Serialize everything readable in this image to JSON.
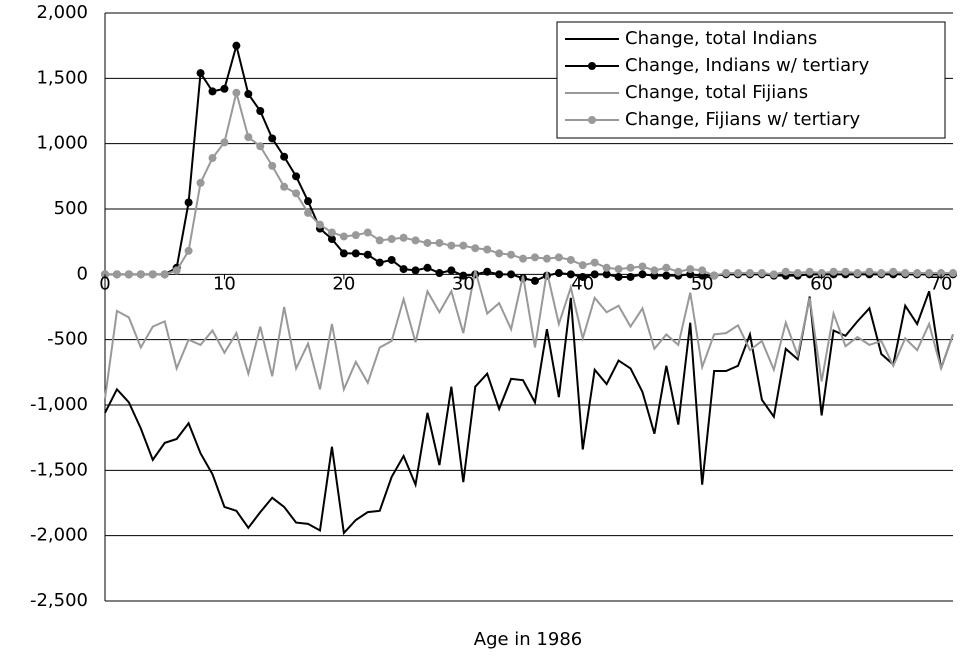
{
  "chart_data": {
    "type": "line",
    "x_label": "Age in 1986",
    "x": [
      0,
      1,
      2,
      3,
      4,
      5,
      6,
      7,
      8,
      9,
      10,
      11,
      12,
      13,
      14,
      15,
      16,
      17,
      18,
      19,
      20,
      21,
      22,
      23,
      24,
      25,
      26,
      27,
      28,
      29,
      30,
      31,
      32,
      33,
      34,
      35,
      36,
      37,
      38,
      39,
      40,
      41,
      42,
      43,
      44,
      45,
      46,
      47,
      48,
      49,
      50,
      51,
      52,
      53,
      54,
      55,
      56,
      57,
      58,
      59,
      60,
      61,
      62,
      63,
      64,
      65,
      66,
      67,
      68,
      69,
      70,
      71
    ],
    "xlim": [
      0,
      71
    ],
    "xticks": [
      0,
      10,
      20,
      30,
      40,
      50,
      60,
      70
    ],
    "ylim": [
      -2500,
      2000
    ],
    "yticks": [
      {
        "value": -2500,
        "label": "-2,500"
      },
      {
        "value": -2000,
        "label": "-2,000"
      },
      {
        "value": -1500,
        "label": "-1,500"
      },
      {
        "value": -1000,
        "label": "-1,000"
      },
      -500,
      0,
      500,
      {
        "value": 1000,
        "label": "1,000"
      },
      {
        "value": 1500,
        "label": "1,500"
      },
      {
        "value": 2000,
        "label": "2,000"
      }
    ],
    "grid": true,
    "legend": "top-right",
    "series": [
      {
        "name": "Change, total Indians",
        "color": "#000000",
        "marker": false,
        "values": [
          -1060,
          -880,
          -980,
          -1180,
          -1420,
          -1290,
          -1260,
          -1140,
          -1370,
          -1530,
          -1780,
          -1810,
          -1940,
          -1820,
          -1710,
          -1780,
          -1900,
          -1910,
          -1960,
          -1320,
          -1980,
          -1880,
          -1820,
          -1810,
          -1550,
          -1390,
          -1610,
          -1060,
          -1460,
          -860,
          -1590,
          -860,
          -760,
          -1030,
          -800,
          -810,
          -980,
          -420,
          -940,
          -180,
          -1340,
          -730,
          -840,
          -660,
          -720,
          -900,
          -1220,
          -700,
          -1150,
          -370,
          -1610,
          -740,
          -740,
          -700,
          -460,
          -960,
          -1090,
          -570,
          -650,
          -170,
          -1080,
          -430,
          -470,
          -360,
          -260,
          -610,
          -690,
          -240,
          -380,
          -130,
          -720,
          -460
        ]
      },
      {
        "name": "Change, Indians w/ tertiary",
        "color": "#000000",
        "marker": true,
        "values": [
          0,
          0,
          0,
          0,
          0,
          0,
          50,
          550,
          1540,
          1400,
          1420,
          1750,
          1380,
          1250,
          1040,
          900,
          750,
          560,
          350,
          270,
          160,
          160,
          150,
          90,
          110,
          40,
          30,
          50,
          10,
          30,
          -10,
          0,
          20,
          0,
          0,
          -30,
          -50,
          -10,
          10,
          0,
          -20,
          0,
          0,
          -20,
          -20,
          0,
          -10,
          -10,
          -10,
          0,
          -10,
          -10,
          0,
          0,
          0,
          0,
          -10,
          -10,
          -10,
          0,
          0,
          0,
          0,
          0,
          0,
          0,
          0,
          0,
          0,
          0,
          0,
          0
        ]
      },
      {
        "name": "Change, total Fijians",
        "color": "#999999",
        "marker": false,
        "values": [
          -950,
          -280,
          -330,
          -560,
          -400,
          -360,
          -720,
          -500,
          -540,
          -430,
          -600,
          -450,
          -760,
          -400,
          -780,
          -250,
          -720,
          -530,
          -880,
          -380,
          -880,
          -670,
          -830,
          -560,
          -510,
          -190,
          -520,
          -130,
          -290,
          -130,
          -450,
          30,
          -300,
          -220,
          -420,
          -10,
          -560,
          20,
          -380,
          -100,
          -490,
          -180,
          -290,
          -240,
          -400,
          -260,
          -570,
          -460,
          -540,
          -140,
          -710,
          -460,
          -450,
          -390,
          -580,
          -510,
          -730,
          -370,
          -620,
          -180,
          -820,
          -300,
          -550,
          -480,
          -540,
          -510,
          -700,
          -490,
          -580,
          -380,
          -720,
          -460
        ]
      },
      {
        "name": "Change, Fijians w/ tertiary",
        "color": "#999999",
        "marker": true,
        "values": [
          0,
          0,
          0,
          0,
          0,
          0,
          30,
          180,
          700,
          890,
          1010,
          1390,
          1050,
          980,
          830,
          670,
          620,
          470,
          380,
          320,
          290,
          300,
          320,
          260,
          270,
          280,
          260,
          240,
          240,
          220,
          220,
          200,
          190,
          160,
          150,
          120,
          130,
          120,
          130,
          110,
          70,
          90,
          50,
          40,
          50,
          60,
          30,
          50,
          20,
          40,
          30,
          -10,
          10,
          10,
          10,
          10,
          0,
          20,
          10,
          20,
          10,
          20,
          20,
          10,
          20,
          10,
          20,
          10,
          10,
          10,
          10,
          10
        ]
      }
    ]
  }
}
